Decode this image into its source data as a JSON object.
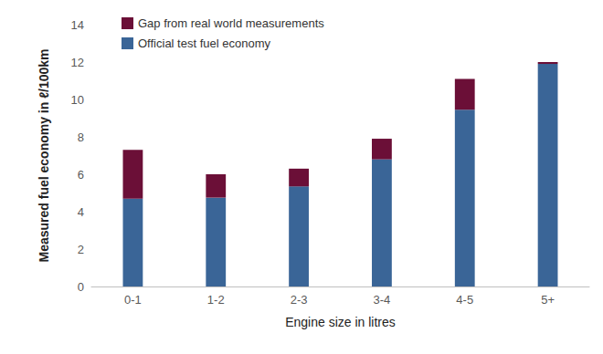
{
  "chart_data": {
    "type": "bar",
    "stacked": true,
    "x_label": "Engine size in litres",
    "y_label": "Measured fuel economy in ℓ/100km",
    "categories": [
      "0-1",
      "1-2",
      "2-3",
      "3-4",
      "4-5",
      "5+"
    ],
    "series": [
      {
        "name": "Official test fuel economy",
        "color": "#3a6597",
        "values": [
          4.7,
          4.75,
          5.35,
          6.8,
          9.45,
          11.9
        ]
      },
      {
        "name": "Gap from real world measurements",
        "color": "#6b0f37",
        "values": [
          2.6,
          1.25,
          0.95,
          1.1,
          1.65,
          0.1
        ]
      }
    ],
    "ylim": [
      0,
      14
    ],
    "yticks": [
      0,
      2,
      4,
      6,
      8,
      10,
      12,
      14
    ],
    "grid": false,
    "legend": "upper left"
  }
}
